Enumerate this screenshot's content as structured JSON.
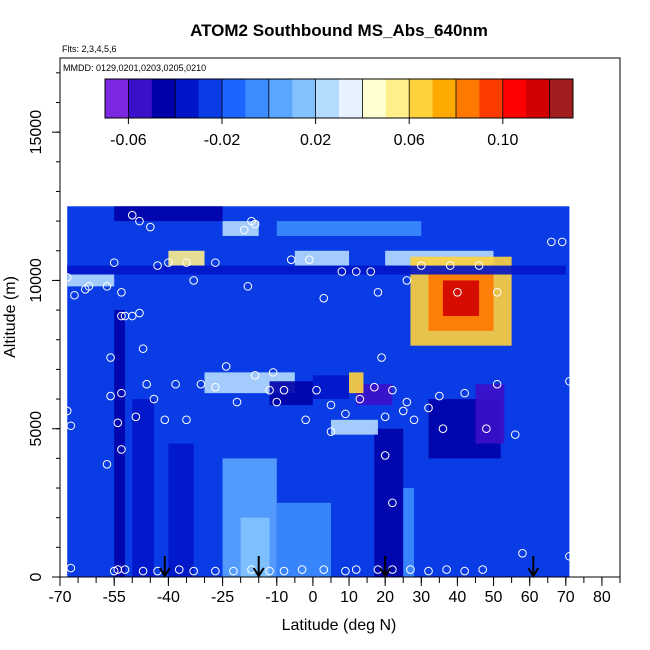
{
  "chart_data": {
    "type": "heatmap",
    "title": "ATOM2 Southbound MS_Abs_640nm",
    "flights_note": "Flts: 2,3,4,5,6",
    "dates_note": "MMDD: 0129,0201,0203,0205,0210",
    "xlabel": "Latitude (deg N)",
    "ylabel": "Altitude (m)",
    "xlim": [
      -70,
      85
    ],
    "ylim": [
      0,
      17500
    ],
    "x_ticks": [
      -70,
      -55,
      -40,
      -25,
      -10,
      0,
      10,
      20,
      30,
      40,
      50,
      60,
      70,
      80
    ],
    "x_tick_labels": [
      "-70",
      "-55",
      "-40",
      "-25",
      "-10",
      "0",
      "10",
      "20",
      "30",
      "40",
      "50",
      "60",
      "70",
      "80"
    ],
    "y_ticks": [
      0,
      5000,
      10000,
      15000
    ],
    "y_tick_labels": [
      "0",
      "5000",
      "10000",
      "15000"
    ],
    "colorbar": {
      "range": [
        -0.07,
        0.13
      ],
      "breaks": [
        -0.07,
        -0.06,
        -0.05,
        -0.04,
        -0.03,
        -0.02,
        -0.01,
        0.0,
        0.01,
        0.02,
        0.03,
        0.04,
        0.05,
        0.06,
        0.07,
        0.08,
        0.09,
        0.1,
        0.11,
        0.12,
        0.13
      ],
      "colors": [
        "#7b28e0",
        "#3c10c8",
        "#0000a8",
        "#0014c8",
        "#0a3ce6",
        "#1e64ff",
        "#3c8cff",
        "#5aa5ff",
        "#82c3ff",
        "#b4dcff",
        "#e6f2ff",
        "#ffffd2",
        "#fff08c",
        "#ffd23c",
        "#ffaa00",
        "#ff7800",
        "#ff3c00",
        "#ff0000",
        "#d20000",
        "#a01e1e"
      ],
      "tick_values": [
        -0.06,
        -0.02,
        0.02,
        0.06,
        0.1
      ],
      "tick_labels": [
        "-0.06",
        "-0.02",
        "0.02",
        "0.06",
        "0.10"
      ]
    },
    "background_value": -0.025,
    "regions": [
      {
        "x": [
          -55,
          -52
        ],
        "y": [
          0,
          9000
        ],
        "value": -0.045
      },
      {
        "x": [
          -50,
          -44
        ],
        "y": [
          0,
          6000
        ],
        "value": -0.04
      },
      {
        "x": [
          -40,
          -33
        ],
        "y": [
          0,
          4500
        ],
        "value": -0.032
      },
      {
        "x": [
          -25,
          -10
        ],
        "y": [
          0,
          4000
        ],
        "value": 0.0
      },
      {
        "x": [
          -20,
          -12
        ],
        "y": [
          0,
          2000
        ],
        "value": 0.015
      },
      {
        "x": [
          -10,
          5
        ],
        "y": [
          0,
          2500
        ],
        "value": -0.005
      },
      {
        "x": [
          17,
          25
        ],
        "y": [
          0,
          5000
        ],
        "value": -0.05
      },
      {
        "x": [
          25,
          28
        ],
        "y": [
          0,
          3000
        ],
        "value": -0.01
      },
      {
        "x": [
          32,
          52
        ],
        "y": [
          4000,
          6000
        ],
        "value": -0.048
      },
      {
        "x": [
          45,
          53
        ],
        "y": [
          4500,
          6500
        ],
        "value": -0.058
      },
      {
        "x": [
          5,
          18
        ],
        "y": [
          4800,
          5300
        ],
        "value": 0.02
      },
      {
        "x": [
          12,
          22
        ],
        "y": [
          5800,
          6500
        ],
        "value": -0.055
      },
      {
        "x": [
          0,
          10
        ],
        "y": [
          6000,
          6800
        ],
        "value": -0.04
      },
      {
        "x": [
          -30,
          -5
        ],
        "y": [
          6200,
          6900
        ],
        "value": 0.02
      },
      {
        "x": [
          -12,
          0
        ],
        "y": [
          5800,
          6600
        ],
        "value": -0.05
      },
      {
        "x": [
          10,
          14
        ],
        "y": [
          6200,
          6900
        ],
        "value": 0.06
      },
      {
        "x": [
          -68,
          -55
        ],
        "y": [
          9800,
          10200
        ],
        "value": 0.02
      },
      {
        "x": [
          -40,
          -30
        ],
        "y": [
          10500,
          11000
        ],
        "value": 0.05
      },
      {
        "x": [
          -5,
          10
        ],
        "y": [
          10500,
          11000
        ],
        "value": 0.02
      },
      {
        "x": [
          20,
          50
        ],
        "y": [
          10500,
          11000
        ],
        "value": 0.02
      },
      {
        "x": [
          -25,
          -15
        ],
        "y": [
          11500,
          12000
        ],
        "value": 0.02
      },
      {
        "x": [
          27,
          55
        ],
        "y": [
          7800,
          10800
        ],
        "value": 0.06
      },
      {
        "x": [
          32,
          50
        ],
        "y": [
          8300,
          10300
        ],
        "value": 0.09
      },
      {
        "x": [
          36,
          46
        ],
        "y": [
          8800,
          10000
        ],
        "value": 0.115
      },
      {
        "x": [
          -55,
          -25
        ],
        "y": [
          12000,
          12500
        ],
        "value": -0.05
      },
      {
        "x": [
          -10,
          30
        ],
        "y": [
          11500,
          12000
        ],
        "value": -0.01
      },
      {
        "x": [
          -68,
          70
        ],
        "y": [
          10200,
          10500
        ],
        "value": -0.04
      }
    ],
    "points": [
      {
        "x": -67,
        "y": 300
      },
      {
        "x": -55,
        "y": 200
      },
      {
        "x": -54,
        "y": 250
      },
      {
        "x": -52,
        "y": 250
      },
      {
        "x": -47,
        "y": 200
      },
      {
        "x": -43,
        "y": 200
      },
      {
        "x": -37,
        "y": 250
      },
      {
        "x": -33,
        "y": 200
      },
      {
        "x": -27,
        "y": 200
      },
      {
        "x": -22,
        "y": 200
      },
      {
        "x": -17,
        "y": 250
      },
      {
        "x": -12,
        "y": 200
      },
      {
        "x": -8,
        "y": 200
      },
      {
        "x": -3,
        "y": 250
      },
      {
        "x": 3,
        "y": 250
      },
      {
        "x": 9,
        "y": 200
      },
      {
        "x": 12,
        "y": 250
      },
      {
        "x": 18,
        "y": 250
      },
      {
        "x": 22,
        "y": 250
      },
      {
        "x": 27,
        "y": 250
      },
      {
        "x": 32,
        "y": 200
      },
      {
        "x": 37,
        "y": 250
      },
      {
        "x": 42,
        "y": 200
      },
      {
        "x": 47,
        "y": 250
      },
      {
        "x": 58,
        "y": 800
      },
      {
        "x": 71,
        "y": 700
      },
      {
        "x": -57,
        "y": 3800
      },
      {
        "x": -53,
        "y": 4300
      },
      {
        "x": 22,
        "y": 2500
      },
      {
        "x": 20,
        "y": 4100
      },
      {
        "x": -68,
        "y": 5600
      },
      {
        "x": -67,
        "y": 5100
      },
      {
        "x": -54,
        "y": 5200
      },
      {
        "x": -49,
        "y": 5400
      },
      {
        "x": -41,
        "y": 5300
      },
      {
        "x": -35,
        "y": 5300
      },
      {
        "x": -21,
        "y": 5900
      },
      {
        "x": -10,
        "y": 5900
      },
      {
        "x": -2,
        "y": 5300
      },
      {
        "x": 5,
        "y": 4900
      },
      {
        "x": 9,
        "y": 5500
      },
      {
        "x": 20,
        "y": 5400
      },
      {
        "x": 25,
        "y": 5600
      },
      {
        "x": 28,
        "y": 5300
      },
      {
        "x": 36,
        "y": 5000
      },
      {
        "x": 48,
        "y": 5000
      },
      {
        "x": 56,
        "y": 4800
      },
      {
        "x": -56,
        "y": 6100
      },
      {
        "x": -53,
        "y": 6200
      },
      {
        "x": -46,
        "y": 6500
      },
      {
        "x": -44,
        "y": 6000
      },
      {
        "x": -38,
        "y": 6500
      },
      {
        "x": -31,
        "y": 6500
      },
      {
        "x": -27,
        "y": 6400
      },
      {
        "x": -16,
        "y": 6800
      },
      {
        "x": -12,
        "y": 6300
      },
      {
        "x": -8,
        "y": 6300
      },
      {
        "x": 1,
        "y": 6300
      },
      {
        "x": 5,
        "y": 5800
      },
      {
        "x": 13,
        "y": 6000
      },
      {
        "x": 17,
        "y": 6400
      },
      {
        "x": 22,
        "y": 6300
      },
      {
        "x": 26,
        "y": 5900
      },
      {
        "x": 32,
        "y": 5700
      },
      {
        "x": 35,
        "y": 6100
      },
      {
        "x": 42,
        "y": 6200
      },
      {
        "x": 51,
        "y": 6500
      },
      {
        "x": 71,
        "y": 6600
      },
      {
        "x": -56,
        "y": 7400
      },
      {
        "x": -24,
        "y": 7100
      },
      {
        "x": -11,
        "y": 6900
      },
      {
        "x": -47,
        "y": 7700
      },
      {
        "x": 19,
        "y": 7400
      },
      {
        "x": -53,
        "y": 8800
      },
      {
        "x": -52,
        "y": 8800
      },
      {
        "x": -50,
        "y": 8800
      },
      {
        "x": -48,
        "y": 8900
      },
      {
        "x": -57,
        "y": 9800
      },
      {
        "x": -53,
        "y": 9600
      },
      {
        "x": -43,
        "y": 10500
      },
      {
        "x": -33,
        "y": 10000
      },
      {
        "x": -18,
        "y": 9800
      },
      {
        "x": 8,
        "y": 10300
      },
      {
        "x": 16,
        "y": 10300
      },
      {
        "x": -68,
        "y": 10100
      },
      {
        "x": -66,
        "y": 9500
      },
      {
        "x": -63,
        "y": 9700
      },
      {
        "x": -62,
        "y": 9800
      },
      {
        "x": 26,
        "y": 10000
      },
      {
        "x": 30,
        "y": 10500
      },
      {
        "x": 38,
        "y": 10500
      },
      {
        "x": 46,
        "y": 10500
      },
      {
        "x": 51,
        "y": 9600
      },
      {
        "x": 18,
        "y": 9600
      },
      {
        "x": 40,
        "y": 9600
      },
      {
        "x": -55,
        "y": 10600
      },
      {
        "x": -40,
        "y": 10600
      },
      {
        "x": -35,
        "y": 10600
      },
      {
        "x": -27,
        "y": 10600
      },
      {
        "x": -6,
        "y": 10700
      },
      {
        "x": -1,
        "y": 10700
      },
      {
        "x": 12,
        "y": 10300
      },
      {
        "x": 3,
        "y": 9400
      },
      {
        "x": -45,
        "y": 11800
      },
      {
        "x": -48,
        "y": 12000
      },
      {
        "x": -19,
        "y": 11700
      },
      {
        "x": -16,
        "y": 11900
      },
      {
        "x": -17,
        "y": 12000
      },
      {
        "x": 66,
        "y": 11300
      },
      {
        "x": 69,
        "y": 11300
      },
      {
        "x": -50,
        "y": 12200
      }
    ],
    "arrows_x": [
      -41,
      -15,
      20,
      61
    ]
  }
}
